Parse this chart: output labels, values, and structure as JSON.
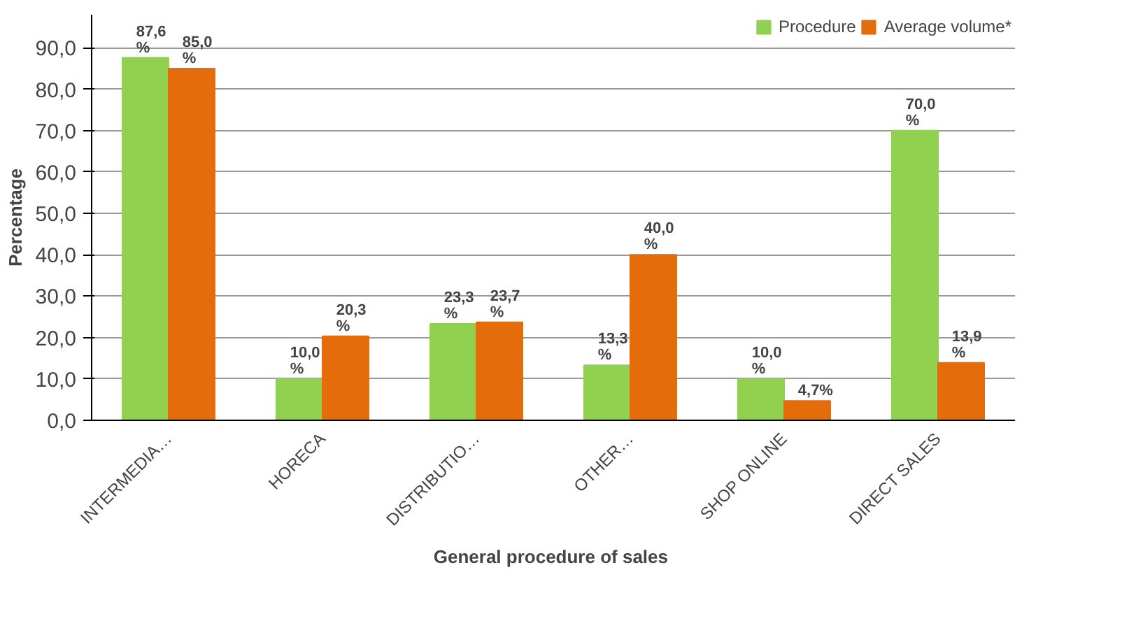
{
  "chart_data": {
    "type": "bar",
    "xlabel": "General  procedure of sales",
    "ylabel": "Percentage",
    "categories": [
      "INTERMEDIA…",
      "HORECA",
      "DISTRIBUTIO…",
      "OTHER…",
      "SHOP ONLINE",
      "DIRECT SALES"
    ],
    "series": [
      {
        "name": "Procedure",
        "color": "#92d050",
        "values": [
          87.6,
          10.0,
          23.3,
          13.3,
          10.0,
          70.0
        ],
        "value_labels": [
          "87,6 %",
          "10,0 %",
          "23,3 %",
          "13,3 %",
          "10,0 %",
          "70,0 %"
        ]
      },
      {
        "name": "Average volume*",
        "color": "#e46c0a",
        "values": [
          85.0,
          20.3,
          23.7,
          40.0,
          4.7,
          13.9
        ],
        "value_labels": [
          "85,0 %",
          "20,3 %",
          "23,7 %",
          "40,0 %",
          "4,7%",
          "13,9 %"
        ]
      }
    ],
    "ylim": [
      0,
      98
    ],
    "yticks": [
      {
        "value": 0,
        "label": "0,0"
      },
      {
        "value": 10,
        "label": "10,0"
      },
      {
        "value": 20,
        "label": "20,0"
      },
      {
        "value": 30,
        "label": "30,0"
      },
      {
        "value": 40,
        "label": "40,0"
      },
      {
        "value": 50,
        "label": "50,0"
      },
      {
        "value": 60,
        "label": "60,0"
      },
      {
        "value": 70,
        "label": "70,0"
      },
      {
        "value": 80,
        "label": "80,0"
      },
      {
        "value": 90,
        "label": "90,0"
      }
    ],
    "grid": "y",
    "legend": "top right"
  }
}
